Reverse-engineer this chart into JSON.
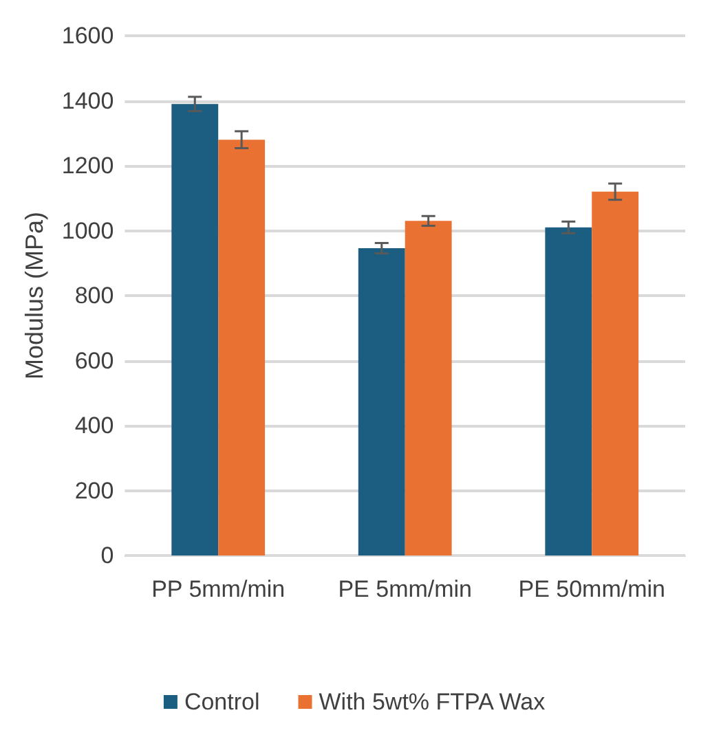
{
  "chart_data": {
    "type": "bar",
    "ylabel": "Modulus (MPa)",
    "categories": [
      "PP 5mm/min",
      "PE 5mm/min",
      "PE 50mm/min"
    ],
    "series": [
      {
        "name": "Control",
        "color": "#1b5e82",
        "values": [
          1390,
          946,
          1010
        ],
        "errors": [
          22,
          16,
          18
        ]
      },
      {
        "name": "With 5wt% FTPA Wax",
        "color": "#e97132",
        "values": [
          1280,
          1030,
          1120
        ],
        "errors": [
          26,
          15,
          25
        ]
      }
    ],
    "ylim": [
      0,
      1600
    ],
    "yticks": [
      0,
      200,
      400,
      600,
      800,
      1000,
      1200,
      1400,
      1600
    ],
    "grid": "y",
    "legend": "bottom"
  }
}
